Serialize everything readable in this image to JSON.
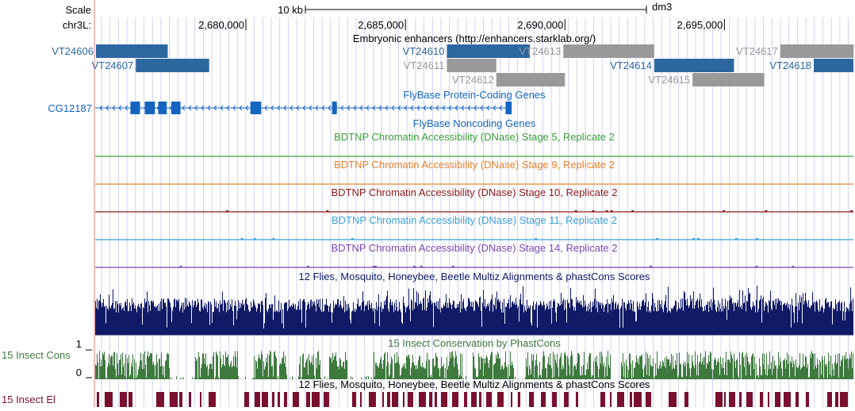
{
  "ruler": {
    "scale_label": "Scale",
    "chrom_label": "chr3L:",
    "scale_bar_label": "10 kb",
    "assembly": "dm3",
    "ticks": [
      {
        "label": "2,680,000",
        "pos": 2680000
      },
      {
        "label": "2,685,000",
        "pos": 2685000
      },
      {
        "label": "2,690,000",
        "pos": 2690000
      },
      {
        "label": "2,695,000",
        "pos": 2695000
      }
    ]
  },
  "genome_view": {
    "start": 2675276,
    "end": 2699043
  },
  "tracks": {
    "enhancers": {
      "title": "Embryonic enhancers (http://enhancers.starklab.org/)",
      "items": [
        {
          "name": "VT24606",
          "start": 2675300,
          "end": 2677550,
          "row": 0,
          "active": true
        },
        {
          "name": "VT24607",
          "start": 2676550,
          "end": 2678850,
          "row": 1,
          "active": true
        },
        {
          "name": "VT24610",
          "start": 2686300,
          "end": 2688900,
          "row": 0,
          "active": true
        },
        {
          "name": "VT24611",
          "start": 2686300,
          "end": 2687850,
          "row": 1,
          "active": false
        },
        {
          "name": "VT24612",
          "start": 2687850,
          "end": 2690000,
          "row": 2,
          "active": false
        },
        {
          "name": "VT24613",
          "start": 2689950,
          "end": 2692800,
          "row": 0,
          "active": false
        },
        {
          "name": "VT24614",
          "start": 2692800,
          "end": 2695300,
          "row": 1,
          "active": true
        },
        {
          "name": "VT24615",
          "start": 2694000,
          "end": 2696250,
          "row": 2,
          "active": false
        },
        {
          "name": "VT24617",
          "start": 2696750,
          "end": 2699050,
          "row": 0,
          "active": false
        },
        {
          "name": "VT24618",
          "start": 2697800,
          "end": 2699043,
          "row": 1,
          "active": true
        }
      ]
    },
    "protein_coding": {
      "title": "FlyBase Protein-Coding Genes",
      "gene": {
        "name": "CG12187",
        "start": 2675276,
        "end": 2688330,
        "strand": "-"
      },
      "exons": [
        {
          "start": 2676380,
          "end": 2676680
        },
        {
          "start": 2676830,
          "end": 2677150
        },
        {
          "start": 2677250,
          "end": 2677520
        },
        {
          "start": 2677660,
          "end": 2677950
        },
        {
          "start": 2680140,
          "end": 2680480
        },
        {
          "start": 2682700,
          "end": 2682850
        },
        {
          "start": 2688140,
          "end": 2688330
        }
      ]
    },
    "noncoding": {
      "title": "FlyBase Noncoding Genes"
    },
    "dnase": [
      {
        "title": "BDTNP Chromatin Accessibility (DNase) Stage 5, Replicate 2",
        "color": "#3aa03a"
      },
      {
        "title": "BDTNP Chromatin Accessibility (DNase) Stage 9, Replicate 2",
        "color": "#e8802a"
      },
      {
        "title": "BDTNP Chromatin Accessibility (DNase) Stage 10, Replicate 2",
        "color": "#8b1a1a"
      },
      {
        "title": "BDTNP Chromatin Accessibility (DNase) Stage 11, Replicate 2",
        "color": "#3fa0d8"
      },
      {
        "title": "BDTNP Chromatin Accessibility (DNase) Stage 14, Replicate 2",
        "color": "#7a4ab0"
      }
    ],
    "multiz": {
      "title": "12 Flies, Mosquito, Honeybee, Beetle Multiz Alignments & phastCons Scores",
      "color": "#111a66"
    },
    "cons15": {
      "title": "15 Insect Conservation by PhastCons",
      "side_label": "15 Insect Cons",
      "ymax": "1",
      "ymin": "0",
      "color": "#3e7a3e"
    },
    "elements15": {
      "title": "12 Flies, Mosquito, Honeybee, Beetle Multiz Alignments & phastCons Scores",
      "side_label": "15 Insect El",
      "color": "#7a1030"
    }
  },
  "colors": {
    "active_item": "#2d67a0",
    "inactive_item": "#999999",
    "gene": "#1565c0",
    "grid": "#c8c8ec",
    "left_border": "#f0a8a8"
  }
}
